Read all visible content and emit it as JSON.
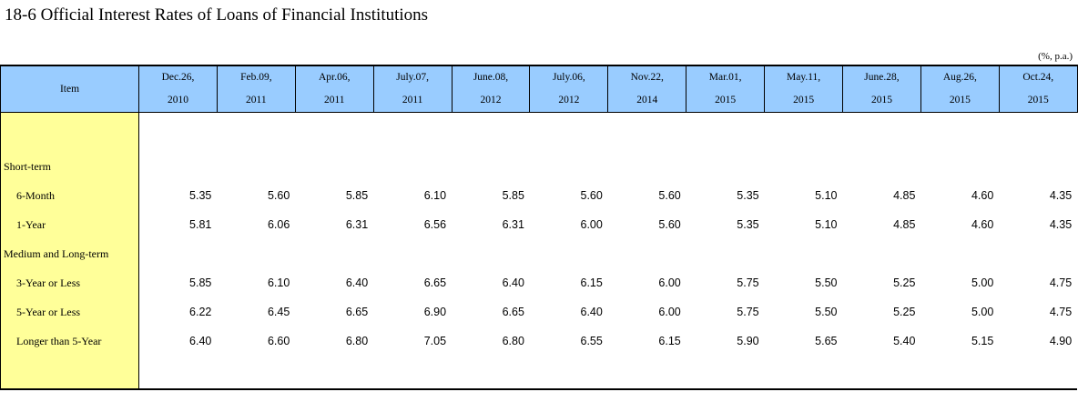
{
  "title": "18-6  Official Interest Rates of Loans of Financial Institutions",
  "unit": "(%, p.a.)",
  "header": {
    "item": "Item",
    "dates": [
      {
        "l1": "Dec.26,",
        "l2": "2010"
      },
      {
        "l1": "Feb.09,",
        "l2": "2011"
      },
      {
        "l1": "Apr.06,",
        "l2": "2011"
      },
      {
        "l1": "July.07,",
        "l2": "2011"
      },
      {
        "l1": "June.08,",
        "l2": "2012"
      },
      {
        "l1": "July.06,",
        "l2": "2012"
      },
      {
        "l1": "Nov.22,",
        "l2": "2014"
      },
      {
        "l1": "Mar.01,",
        "l2": "2015"
      },
      {
        "l1": "May.11,",
        "l2": "2015"
      },
      {
        "l1": "June.28,",
        "l2": "2015"
      },
      {
        "l1": "Aug.26,",
        "l2": "2015"
      },
      {
        "l1": "Oct.24,",
        "l2": "2015"
      }
    ]
  },
  "rows": [
    {
      "label": "Short-term",
      "indent": false,
      "values": []
    },
    {
      "label": "6-Month",
      "indent": true,
      "values": [
        "5.35",
        "5.60",
        "5.85",
        "6.10",
        "5.85",
        "5.60",
        "5.60",
        "5.35",
        "5.10",
        "4.85",
        "4.60",
        "4.35"
      ]
    },
    {
      "label": "1-Year",
      "indent": true,
      "values": [
        "5.81",
        "6.06",
        "6.31",
        "6.56",
        "6.31",
        "6.00",
        "5.60",
        "5.35",
        "5.10",
        "4.85",
        "4.60",
        "4.35"
      ]
    },
    {
      "label": "Medium and Long-term",
      "indent": false,
      "values": []
    },
    {
      "label": "3-Year or Less",
      "indent": true,
      "values": [
        "5.85",
        "6.10",
        "6.40",
        "6.65",
        "6.40",
        "6.15",
        "6.00",
        "5.75",
        "5.50",
        "5.25",
        "5.00",
        "4.75"
      ]
    },
    {
      "label": "5-Year or Less",
      "indent": true,
      "values": [
        "6.22",
        "6.45",
        "6.65",
        "6.90",
        "6.65",
        "6.40",
        "6.00",
        "5.75",
        "5.50",
        "5.25",
        "5.00",
        "4.75"
      ]
    },
    {
      "label": "Longer than 5-Year",
      "indent": true,
      "values": [
        "6.40",
        "6.60",
        "6.80",
        "7.05",
        "6.80",
        "6.55",
        "6.15",
        "5.90",
        "5.65",
        "5.40",
        "5.15",
        "4.90"
      ]
    }
  ]
}
